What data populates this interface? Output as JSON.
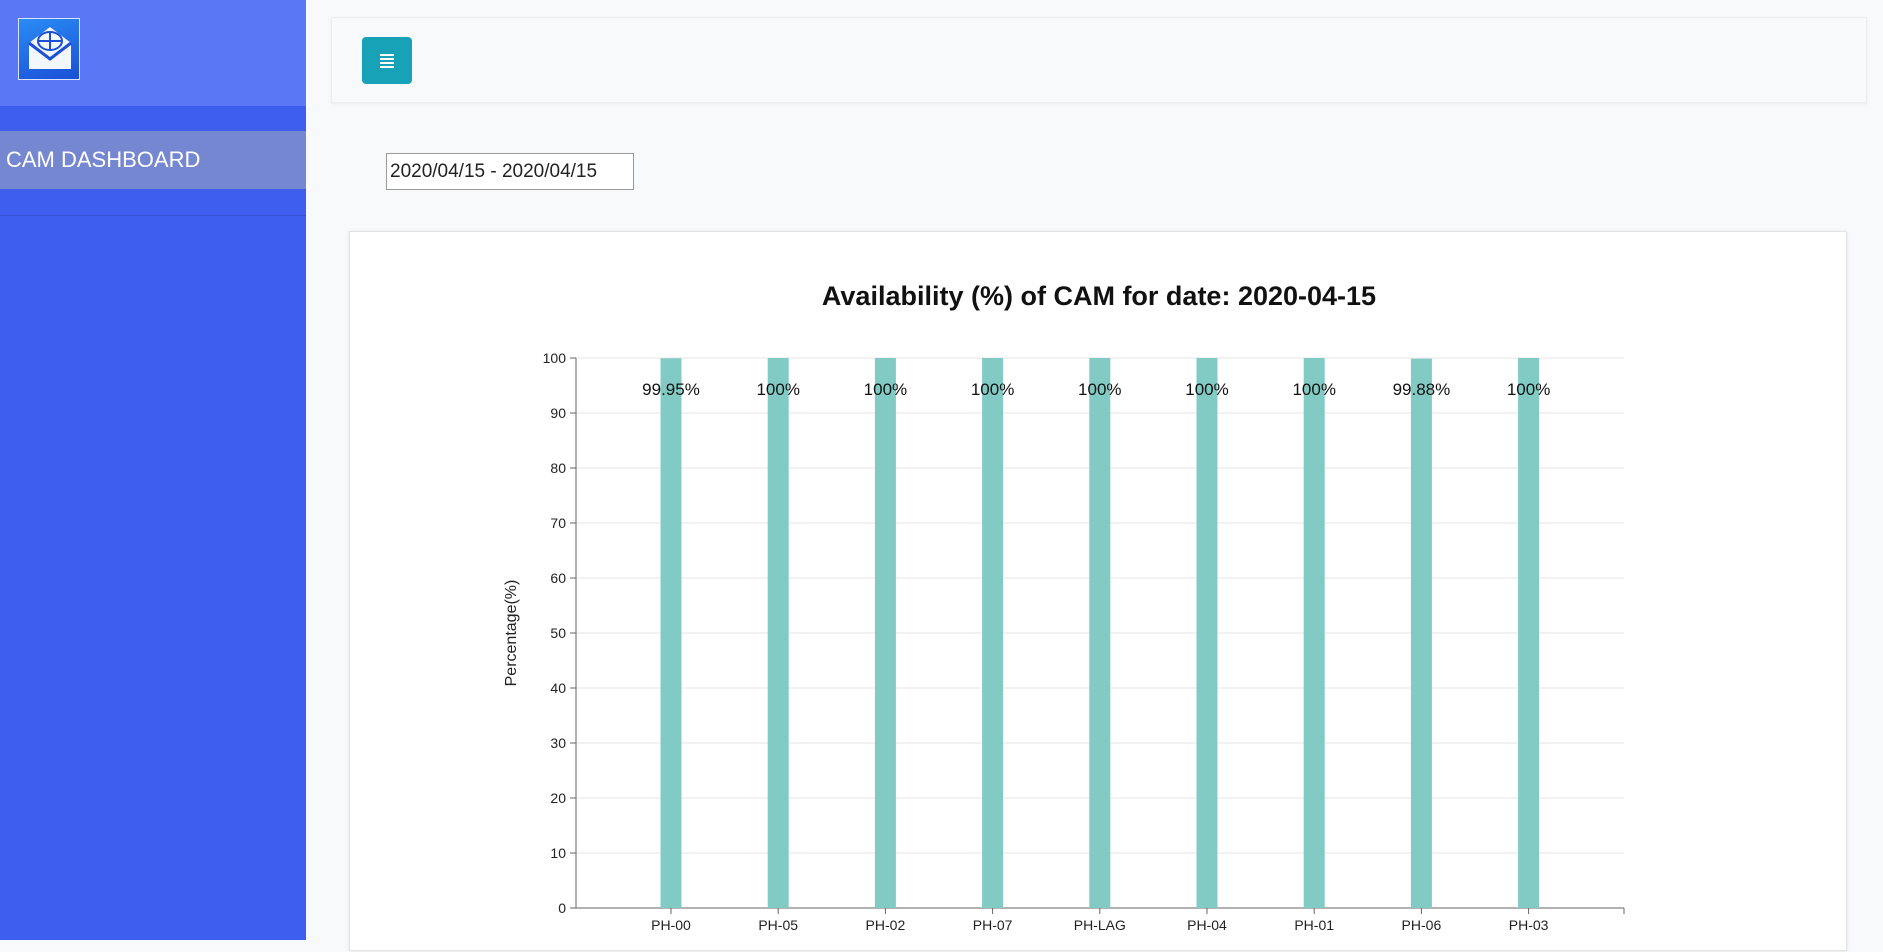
{
  "sidebar": {
    "logo_icon": "globe-envelope-icon",
    "items": [
      {
        "label": "CAM DASHBOARD"
      }
    ]
  },
  "topbar": {
    "menu_icon": "hamburger-menu-icon",
    "accent": "#17a2b8"
  },
  "filter": {
    "date_range_value": "2020/04/15 - 2020/04/15"
  },
  "colors": {
    "sidebar": "#3e5ef0",
    "sidebar_header": "#5a78f5",
    "bar": "#81cbc4"
  },
  "chart_data": {
    "type": "bar",
    "title": "Availability (%) of CAM for date: 2020-04-15",
    "xlabel": "",
    "ylabel": "Percentage(%)",
    "ylim": [
      0,
      100
    ],
    "yticks": [
      0,
      10,
      20,
      30,
      40,
      50,
      60,
      70,
      80,
      90,
      100
    ],
    "grid": true,
    "categories": [
      "PH-00",
      "PH-05",
      "PH-02",
      "PH-07",
      "PH-LAG",
      "PH-04",
      "PH-01",
      "PH-06",
      "PH-03"
    ],
    "values": [
      99.95,
      100,
      100,
      100,
      100,
      100,
      100,
      99.88,
      100
    ],
    "data_labels": [
      "99.95%",
      "100%",
      "100%",
      "100%",
      "100%",
      "100%",
      "100%",
      "99.88%",
      "100%"
    ]
  }
}
